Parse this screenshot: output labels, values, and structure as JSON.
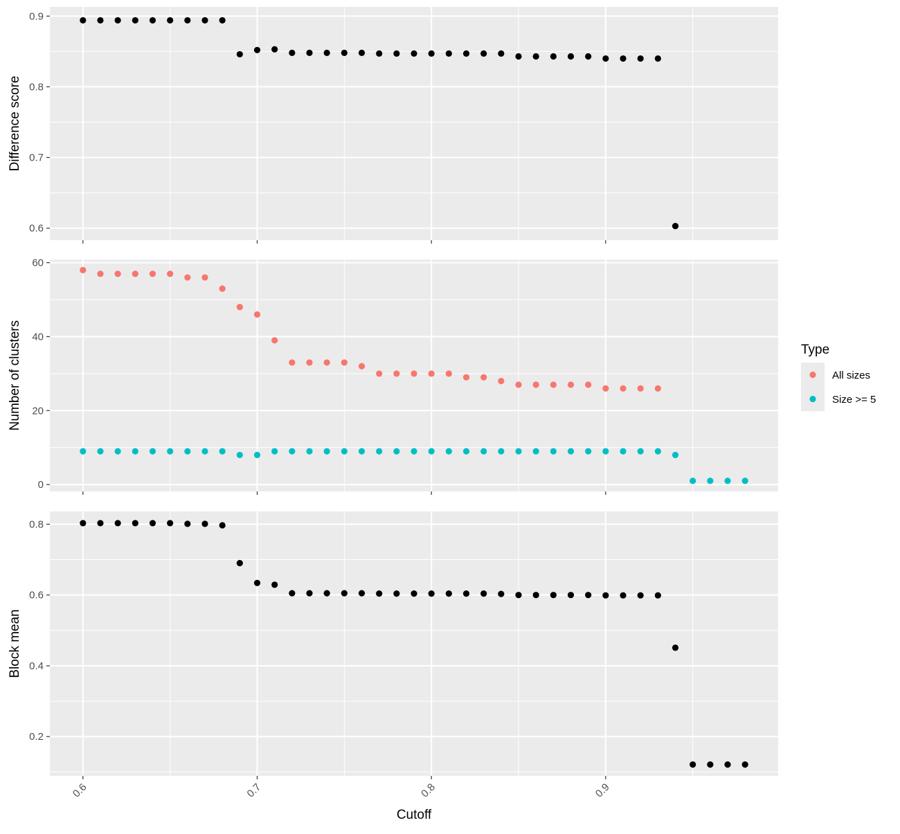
{
  "chart_data": [
    {
      "type": "scatter",
      "ylabel": "Difference score",
      "ylim": [
        0.583,
        0.913
      ],
      "yticks": [
        0.6,
        0.7,
        0.8,
        0.9
      ],
      "ytick_labels": [
        "0.6",
        "0.7",
        "0.8",
        "0.9"
      ],
      "grid": true,
      "series": [
        {
          "color": "#000000",
          "x": [
            0.6,
            0.61,
            0.62,
            0.63,
            0.64,
            0.65,
            0.66,
            0.67,
            0.68,
            0.69,
            0.7,
            0.71,
            0.72,
            0.73,
            0.74,
            0.75,
            0.76,
            0.77,
            0.78,
            0.79,
            0.8,
            0.81,
            0.82,
            0.83,
            0.84,
            0.85,
            0.86,
            0.87,
            0.88,
            0.89,
            0.9,
            0.91,
            0.92,
            0.93,
            0.94
          ],
          "y": [
            0.894,
            0.894,
            0.894,
            0.894,
            0.894,
            0.894,
            0.894,
            0.894,
            0.894,
            0.846,
            0.852,
            0.853,
            0.848,
            0.848,
            0.848,
            0.848,
            0.848,
            0.847,
            0.847,
            0.847,
            0.847,
            0.847,
            0.847,
            0.847,
            0.847,
            0.843,
            0.843,
            0.843,
            0.843,
            0.843,
            0.84,
            0.84,
            0.84,
            0.84,
            0.603
          ]
        }
      ]
    },
    {
      "type": "scatter",
      "ylabel": "Number of clusters",
      "ylim": [
        -1.85,
        60.85
      ],
      "yticks": [
        0,
        20,
        40,
        60
      ],
      "ytick_labels": [
        "0",
        "20",
        "40",
        "60"
      ],
      "grid": true,
      "legend": {
        "title": "Type",
        "position": "right",
        "entries": [
          {
            "label": "All sizes",
            "color": "#F8766D"
          },
          {
            "label": "Size >= 5",
            "color": "#00BFC4"
          }
        ]
      },
      "series": [
        {
          "name": "All sizes",
          "color": "#F8766D",
          "x": [
            0.6,
            0.61,
            0.62,
            0.63,
            0.64,
            0.65,
            0.66,
            0.67,
            0.68,
            0.69,
            0.7,
            0.71,
            0.72,
            0.73,
            0.74,
            0.75,
            0.76,
            0.77,
            0.78,
            0.79,
            0.8,
            0.81,
            0.82,
            0.83,
            0.84,
            0.85,
            0.86,
            0.87,
            0.88,
            0.89,
            0.9,
            0.91,
            0.92,
            0.93
          ],
          "y": [
            58,
            57,
            57,
            57,
            57,
            57,
            56,
            56,
            53,
            48,
            46,
            39,
            33,
            33,
            33,
            33,
            32,
            30,
            30,
            30,
            30,
            30,
            29,
            29,
            28,
            27,
            27,
            27,
            27,
            27,
            26,
            26,
            26,
            26
          ]
        },
        {
          "name": "Size >= 5",
          "color": "#00BFC4",
          "x": [
            0.6,
            0.61,
            0.62,
            0.63,
            0.64,
            0.65,
            0.66,
            0.67,
            0.68,
            0.69,
            0.7,
            0.71,
            0.72,
            0.73,
            0.74,
            0.75,
            0.76,
            0.77,
            0.78,
            0.79,
            0.8,
            0.81,
            0.82,
            0.83,
            0.84,
            0.85,
            0.86,
            0.87,
            0.88,
            0.89,
            0.9,
            0.91,
            0.92,
            0.93,
            0.94,
            0.95,
            0.96,
            0.97,
            0.98
          ],
          "y": [
            9,
            9,
            9,
            9,
            9,
            9,
            9,
            9,
            9,
            8,
            8,
            9,
            9,
            9,
            9,
            9,
            9,
            9,
            9,
            9,
            9,
            9,
            9,
            9,
            9,
            9,
            9,
            9,
            9,
            9,
            9,
            9,
            9,
            9,
            8,
            1,
            1,
            1,
            1
          ]
        }
      ]
    },
    {
      "type": "scatter",
      "ylabel": "Block mean",
      "xlabel": "Cutoff",
      "ylim": [
        0.089,
        0.836
      ],
      "yticks": [
        0.2,
        0.4,
        0.6,
        0.8
      ],
      "ytick_labels": [
        "0.2",
        "0.4",
        "0.6",
        "0.8"
      ],
      "grid": true,
      "series": [
        {
          "color": "#000000",
          "x": [
            0.6,
            0.61,
            0.62,
            0.63,
            0.64,
            0.65,
            0.66,
            0.67,
            0.68,
            0.69,
            0.7,
            0.71,
            0.72,
            0.73,
            0.74,
            0.75,
            0.76,
            0.77,
            0.78,
            0.79,
            0.8,
            0.81,
            0.82,
            0.83,
            0.84,
            0.85,
            0.86,
            0.87,
            0.88,
            0.89,
            0.9,
            0.91,
            0.92,
            0.93,
            0.94,
            0.95,
            0.96,
            0.97,
            0.98
          ],
          "y": [
            0.803,
            0.803,
            0.803,
            0.803,
            0.803,
            0.803,
            0.801,
            0.801,
            0.797,
            0.69,
            0.634,
            0.629,
            0.605,
            0.605,
            0.605,
            0.605,
            0.605,
            0.604,
            0.604,
            0.604,
            0.604,
            0.604,
            0.604,
            0.604,
            0.603,
            0.6,
            0.6,
            0.6,
            0.6,
            0.6,
            0.599,
            0.599,
            0.599,
            0.599,
            0.451,
            0.121,
            0.121,
            0.121,
            0.121
          ]
        }
      ]
    }
  ],
  "shared_x": {
    "xlim": [
      0.581,
      0.999
    ],
    "ticks": [
      0.6,
      0.7,
      0.8,
      0.9
    ],
    "tick_labels": [
      "0.6",
      "0.7",
      "0.8",
      "0.9"
    ],
    "label": "Cutoff"
  },
  "colors": {
    "panel_background": "#EBEBEB",
    "major_grid": "#FFFFFF",
    "tick_text": "#4D4D4D"
  }
}
